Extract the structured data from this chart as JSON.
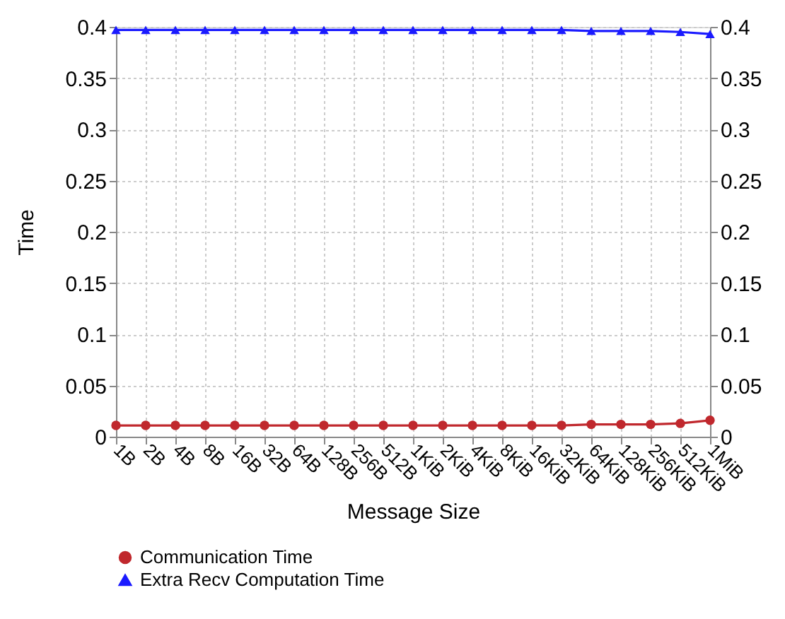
{
  "chart_data": {
    "type": "line",
    "xlabel": "Message Size",
    "ylabel": "Time",
    "categories": [
      "1B",
      "2B",
      "4B",
      "8B",
      "16B",
      "32B",
      "64B",
      "128B",
      "256B",
      "512B",
      "1KiB",
      "2KiB",
      "4KiB",
      "8KiB",
      "16KiB",
      "32KiB",
      "64KiB",
      "128KiB",
      "256KiB",
      "512KiB",
      "1MiB"
    ],
    "series": [
      {
        "name": "Communication Time",
        "color": "#c0282d",
        "marker": "circle",
        "values": [
          0.011,
          0.011,
          0.011,
          0.011,
          0.011,
          0.011,
          0.011,
          0.011,
          0.011,
          0.011,
          0.011,
          0.011,
          0.011,
          0.011,
          0.011,
          0.011,
          0.012,
          0.012,
          0.012,
          0.013,
          0.016
        ]
      },
      {
        "name": "Extra Recv Computation Time",
        "color": "#1a1aff",
        "marker": "triangle",
        "values": [
          0.397,
          0.397,
          0.397,
          0.397,
          0.397,
          0.397,
          0.397,
          0.397,
          0.397,
          0.397,
          0.397,
          0.397,
          0.397,
          0.397,
          0.397,
          0.397,
          0.396,
          0.396,
          0.396,
          0.395,
          0.393
        ]
      }
    ],
    "ylim": [
      0,
      0.4
    ],
    "yticks": [
      0,
      0.05,
      0.1,
      0.15,
      0.2,
      0.25,
      0.3,
      0.35,
      0.4
    ],
    "y2lim": [
      0,
      0.4
    ],
    "y2ticks": [
      0,
      0.05,
      0.1,
      0.15,
      0.2,
      0.25,
      0.3,
      0.35,
      0.4
    ],
    "grid": true,
    "legend": "bottom",
    "line_style": "solid"
  }
}
